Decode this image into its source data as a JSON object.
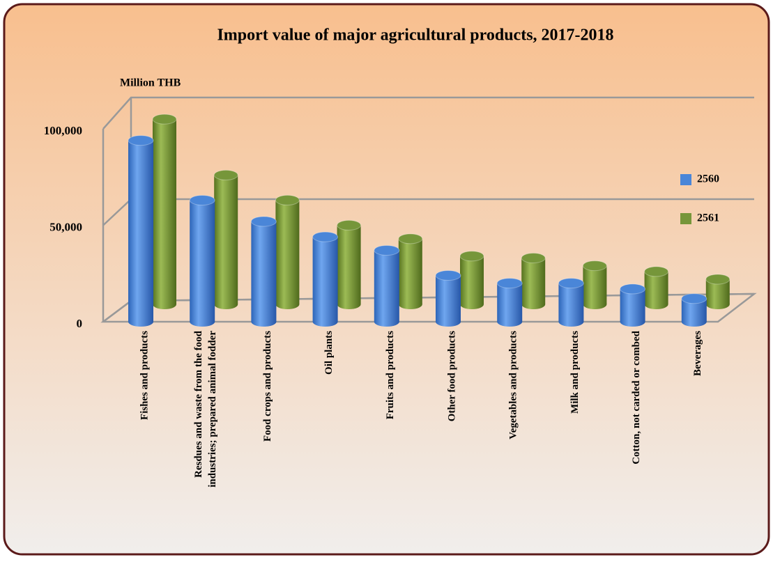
{
  "chart_data": {
    "type": "bar3d",
    "title": "Import value of major agricultural products, 2017-2018",
    "y_label": "Million THB",
    "categories": [
      "Fishes and products",
      "Resdues and waste from the food\nindustries; prepared animal fodder",
      "Food crops and products",
      "Oil plants",
      "Fruits and products",
      "Other food products",
      "Vegetables and products",
      "Milk and products",
      "Cotton, not carded or combed",
      "Beverages"
    ],
    "series": [
      {
        "name": "2560",
        "color": "#4a86d8",
        "values": [
          94000,
          63000,
          52000,
          44000,
          37000,
          24000,
          20000,
          20000,
          17000,
          12000
        ]
      },
      {
        "name": "2561",
        "color": "#76963a",
        "values": [
          96000,
          67000,
          54000,
          41000,
          34000,
          25000,
          24000,
          20000,
          17000,
          13000
        ]
      }
    ],
    "ylim": [
      0,
      100000
    ],
    "yticks": [
      0,
      {
        "value": 50000,
        "label": "50,000"
      },
      {
        "value": 100000,
        "label": "100,000"
      }
    ],
    "grid": true,
    "legend": "right"
  }
}
